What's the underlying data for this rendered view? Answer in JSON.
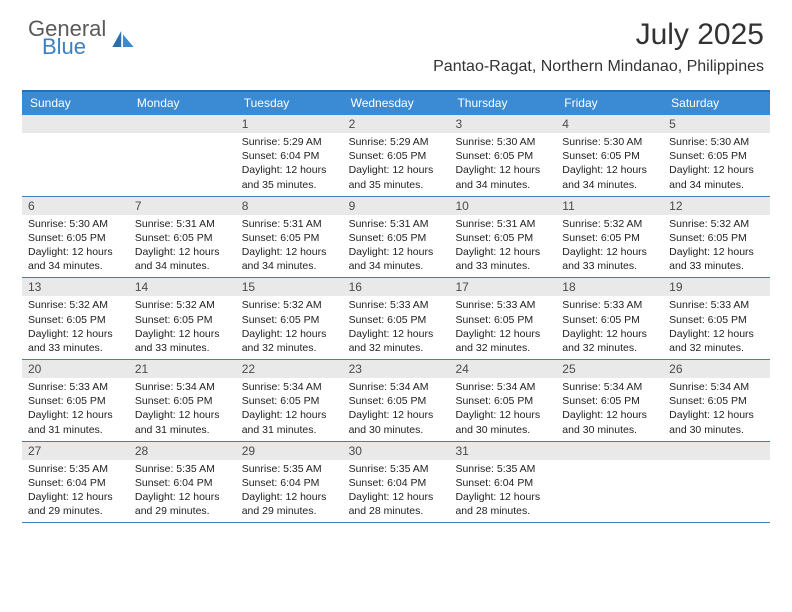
{
  "brand": {
    "general": "General",
    "blue": "Blue"
  },
  "title": "July 2025",
  "location": "Pantao-Ragat, Northern Mindanao, Philippines",
  "colors": {
    "header_bg": "#3b8bd4",
    "border": "#3b7fc4",
    "daynum_bg": "#e9e9e9",
    "text": "#222222",
    "logo_gray": "#5a5a5a",
    "logo_blue": "#3b7fc4"
  },
  "dayheaders": [
    "Sunday",
    "Monday",
    "Tuesday",
    "Wednesday",
    "Thursday",
    "Friday",
    "Saturday"
  ],
  "weeks": [
    [
      {
        "day": "",
        "sunrise": "",
        "sunset": "",
        "daylight": ""
      },
      {
        "day": "",
        "sunrise": "",
        "sunset": "",
        "daylight": ""
      },
      {
        "day": "1",
        "sunrise": "Sunrise: 5:29 AM",
        "sunset": "Sunset: 6:04 PM",
        "daylight": "Daylight: 12 hours and 35 minutes."
      },
      {
        "day": "2",
        "sunrise": "Sunrise: 5:29 AM",
        "sunset": "Sunset: 6:05 PM",
        "daylight": "Daylight: 12 hours and 35 minutes."
      },
      {
        "day": "3",
        "sunrise": "Sunrise: 5:30 AM",
        "sunset": "Sunset: 6:05 PM",
        "daylight": "Daylight: 12 hours and 34 minutes."
      },
      {
        "day": "4",
        "sunrise": "Sunrise: 5:30 AM",
        "sunset": "Sunset: 6:05 PM",
        "daylight": "Daylight: 12 hours and 34 minutes."
      },
      {
        "day": "5",
        "sunrise": "Sunrise: 5:30 AM",
        "sunset": "Sunset: 6:05 PM",
        "daylight": "Daylight: 12 hours and 34 minutes."
      }
    ],
    [
      {
        "day": "6",
        "sunrise": "Sunrise: 5:30 AM",
        "sunset": "Sunset: 6:05 PM",
        "daylight": "Daylight: 12 hours and 34 minutes."
      },
      {
        "day": "7",
        "sunrise": "Sunrise: 5:31 AM",
        "sunset": "Sunset: 6:05 PM",
        "daylight": "Daylight: 12 hours and 34 minutes."
      },
      {
        "day": "8",
        "sunrise": "Sunrise: 5:31 AM",
        "sunset": "Sunset: 6:05 PM",
        "daylight": "Daylight: 12 hours and 34 minutes."
      },
      {
        "day": "9",
        "sunrise": "Sunrise: 5:31 AM",
        "sunset": "Sunset: 6:05 PM",
        "daylight": "Daylight: 12 hours and 34 minutes."
      },
      {
        "day": "10",
        "sunrise": "Sunrise: 5:31 AM",
        "sunset": "Sunset: 6:05 PM",
        "daylight": "Daylight: 12 hours and 33 minutes."
      },
      {
        "day": "11",
        "sunrise": "Sunrise: 5:32 AM",
        "sunset": "Sunset: 6:05 PM",
        "daylight": "Daylight: 12 hours and 33 minutes."
      },
      {
        "day": "12",
        "sunrise": "Sunrise: 5:32 AM",
        "sunset": "Sunset: 6:05 PM",
        "daylight": "Daylight: 12 hours and 33 minutes."
      }
    ],
    [
      {
        "day": "13",
        "sunrise": "Sunrise: 5:32 AM",
        "sunset": "Sunset: 6:05 PM",
        "daylight": "Daylight: 12 hours and 33 minutes."
      },
      {
        "day": "14",
        "sunrise": "Sunrise: 5:32 AM",
        "sunset": "Sunset: 6:05 PM",
        "daylight": "Daylight: 12 hours and 33 minutes."
      },
      {
        "day": "15",
        "sunrise": "Sunrise: 5:32 AM",
        "sunset": "Sunset: 6:05 PM",
        "daylight": "Daylight: 12 hours and 32 minutes."
      },
      {
        "day": "16",
        "sunrise": "Sunrise: 5:33 AM",
        "sunset": "Sunset: 6:05 PM",
        "daylight": "Daylight: 12 hours and 32 minutes."
      },
      {
        "day": "17",
        "sunrise": "Sunrise: 5:33 AM",
        "sunset": "Sunset: 6:05 PM",
        "daylight": "Daylight: 12 hours and 32 minutes."
      },
      {
        "day": "18",
        "sunrise": "Sunrise: 5:33 AM",
        "sunset": "Sunset: 6:05 PM",
        "daylight": "Daylight: 12 hours and 32 minutes."
      },
      {
        "day": "19",
        "sunrise": "Sunrise: 5:33 AM",
        "sunset": "Sunset: 6:05 PM",
        "daylight": "Daylight: 12 hours and 32 minutes."
      }
    ],
    [
      {
        "day": "20",
        "sunrise": "Sunrise: 5:33 AM",
        "sunset": "Sunset: 6:05 PM",
        "daylight": "Daylight: 12 hours and 31 minutes."
      },
      {
        "day": "21",
        "sunrise": "Sunrise: 5:34 AM",
        "sunset": "Sunset: 6:05 PM",
        "daylight": "Daylight: 12 hours and 31 minutes."
      },
      {
        "day": "22",
        "sunrise": "Sunrise: 5:34 AM",
        "sunset": "Sunset: 6:05 PM",
        "daylight": "Daylight: 12 hours and 31 minutes."
      },
      {
        "day": "23",
        "sunrise": "Sunrise: 5:34 AM",
        "sunset": "Sunset: 6:05 PM",
        "daylight": "Daylight: 12 hours and 30 minutes."
      },
      {
        "day": "24",
        "sunrise": "Sunrise: 5:34 AM",
        "sunset": "Sunset: 6:05 PM",
        "daylight": "Daylight: 12 hours and 30 minutes."
      },
      {
        "day": "25",
        "sunrise": "Sunrise: 5:34 AM",
        "sunset": "Sunset: 6:05 PM",
        "daylight": "Daylight: 12 hours and 30 minutes."
      },
      {
        "day": "26",
        "sunrise": "Sunrise: 5:34 AM",
        "sunset": "Sunset: 6:05 PM",
        "daylight": "Daylight: 12 hours and 30 minutes."
      }
    ],
    [
      {
        "day": "27",
        "sunrise": "Sunrise: 5:35 AM",
        "sunset": "Sunset: 6:04 PM",
        "daylight": "Daylight: 12 hours and 29 minutes."
      },
      {
        "day": "28",
        "sunrise": "Sunrise: 5:35 AM",
        "sunset": "Sunset: 6:04 PM",
        "daylight": "Daylight: 12 hours and 29 minutes."
      },
      {
        "day": "29",
        "sunrise": "Sunrise: 5:35 AM",
        "sunset": "Sunset: 6:04 PM",
        "daylight": "Daylight: 12 hours and 29 minutes."
      },
      {
        "day": "30",
        "sunrise": "Sunrise: 5:35 AM",
        "sunset": "Sunset: 6:04 PM",
        "daylight": "Daylight: 12 hours and 28 minutes."
      },
      {
        "day": "31",
        "sunrise": "Sunrise: 5:35 AM",
        "sunset": "Sunset: 6:04 PM",
        "daylight": "Daylight: 12 hours and 28 minutes."
      },
      {
        "day": "",
        "sunrise": "",
        "sunset": "",
        "daylight": ""
      },
      {
        "day": "",
        "sunrise": "",
        "sunset": "",
        "daylight": ""
      }
    ]
  ]
}
